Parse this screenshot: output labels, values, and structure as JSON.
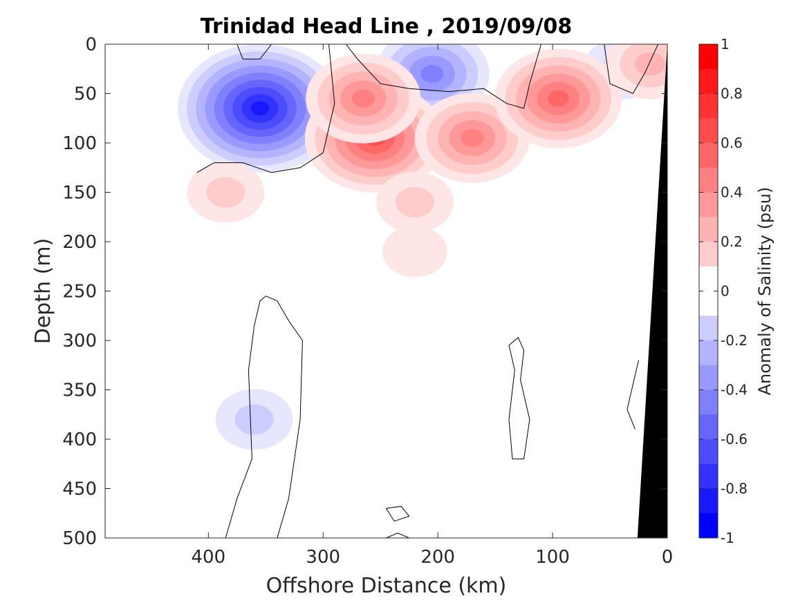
{
  "chart_data": {
    "type": "heatmap",
    "subtype": "filled-contour",
    "title": "Trinidad Head Line , 2019/09/08",
    "xlabel": "Offshore Distance (km)",
    "ylabel": "Depth (m)",
    "colorbar_label": "Anomaly of Salinity (psu)",
    "xlim": [
      490,
      0
    ],
    "ylim": [
      0,
      500
    ],
    "y_reversed": true,
    "x_reversed": true,
    "x_ticks": [
      400,
      300,
      200,
      100,
      0
    ],
    "y_ticks": [
      0,
      50,
      100,
      150,
      200,
      250,
      300,
      350,
      400,
      450,
      500
    ],
    "colorbar": {
      "range": [
        -1,
        1
      ],
      "level_step": 0.1,
      "tick_values": [
        1,
        0.8,
        0.6,
        0.4,
        0.2,
        0,
        -0.2,
        -0.4,
        -0.6,
        -0.8,
        -1
      ],
      "tick_labels": [
        "1",
        "0.8",
        "0.6",
        "0.4",
        "0.2",
        "0",
        "-0.2",
        "-0.4",
        "-0.6",
        "-0.8",
        "-1"
      ],
      "positive_color": "#ff0000",
      "negative_color": "#0000ff",
      "neutral_color": "#ffffff"
    },
    "features": [
      {
        "x": 355,
        "depth": 65,
        "anomaly": -0.85
      },
      {
        "x": 205,
        "depth": 30,
        "anomaly": -0.45
      },
      {
        "x": 40,
        "depth": 25,
        "anomaly": -0.15
      },
      {
        "x": 360,
        "depth": 380,
        "anomaly": -0.15
      },
      {
        "x": 255,
        "depth": 95,
        "anomaly": 0.65
      },
      {
        "x": 265,
        "depth": 55,
        "anomaly": 0.45
      },
      {
        "x": 170,
        "depth": 95,
        "anomaly": 0.45
      },
      {
        "x": 95,
        "depth": 55,
        "anomaly": 0.55
      },
      {
        "x": 15,
        "depth": 20,
        "anomaly": 0.25
      },
      {
        "x": 385,
        "depth": 150,
        "anomaly": 0.15
      },
      {
        "x": 220,
        "depth": 160,
        "anomaly": 0.15
      },
      {
        "x": 220,
        "depth": 210,
        "anomaly": 0.1
      }
    ],
    "shelf_color": "#000000"
  }
}
